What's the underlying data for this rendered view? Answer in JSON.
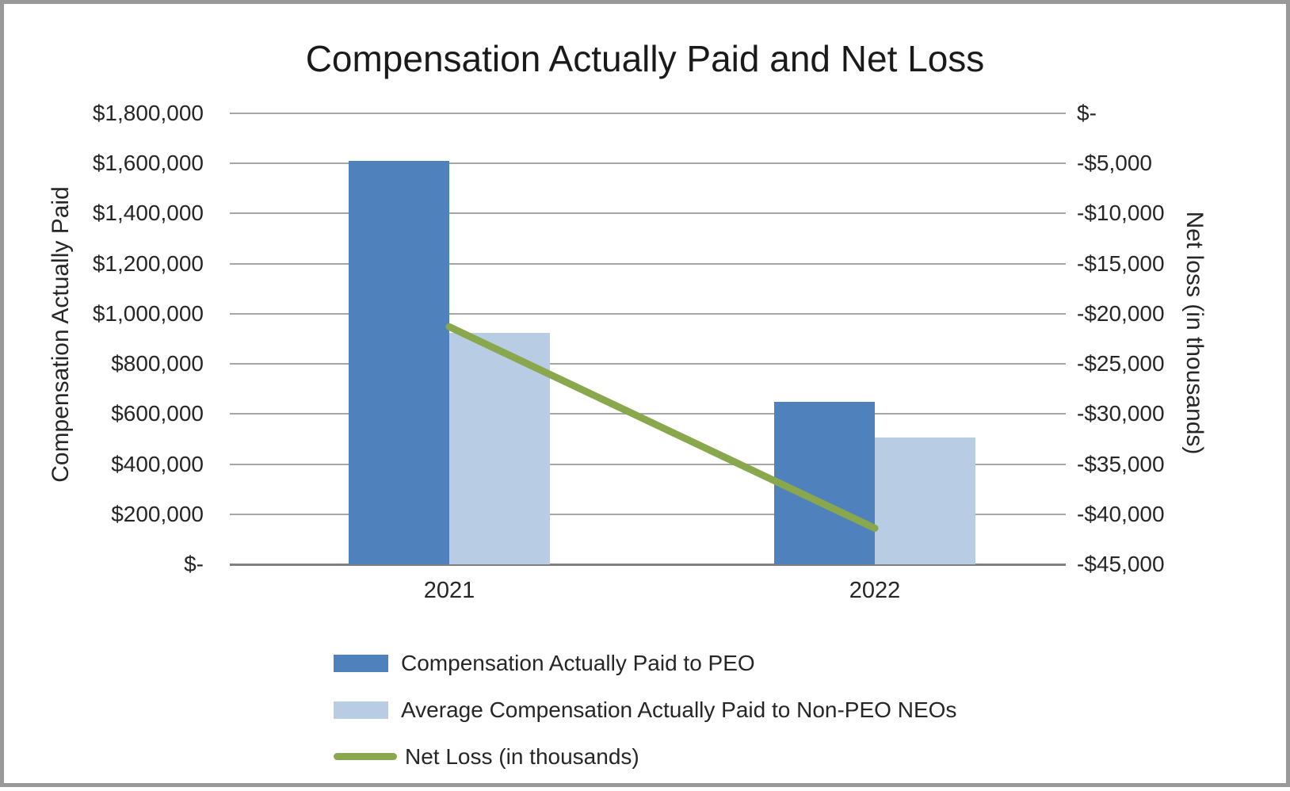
{
  "frame": {
    "border_color": "#999999",
    "background_color": "#ffffff",
    "gridline_color": "#a6a6a6",
    "axis_line_color": "#808080",
    "text_color": "#262626"
  },
  "chart_data": {
    "type": "combo",
    "title": "Compensation Actually Paid and Net Loss",
    "categories": [
      "2021",
      "2022"
    ],
    "series": [
      {
        "key": "cap-peo",
        "name": "Compensation Actually Paid to PEO",
        "type": "bar",
        "axis": "left",
        "color": "#4f81bd",
        "values": [
          1610000,
          650000
        ]
      },
      {
        "key": "avg-cap-non-peo-neos",
        "name": "Average Compensation Actually Paid to Non-PEO NEOs",
        "type": "bar",
        "axis": "left",
        "color": "#b8cce4",
        "values": [
          925000,
          505000
        ]
      },
      {
        "key": "net-loss",
        "name": "Net Loss (in thousands)",
        "type": "line",
        "axis": "right",
        "color": "#89a84e",
        "values": [
          -21300,
          -41400
        ]
      }
    ],
    "left_axis": {
      "title": "Compensation Actually Paid",
      "min": 0,
      "max": 1800000,
      "ticks_top_to_bottom": [
        "$1,800,000",
        "$1,600,000",
        "$1,400,000",
        "$1,200,000",
        "$1,000,000",
        "$800,000",
        "$600,000",
        "$400,000",
        "$200,000",
        "$-"
      ]
    },
    "right_axis": {
      "title": "Net loss (in thousands)",
      "min": -45000,
      "max": 0,
      "ticks_top_to_bottom": [
        "$-",
        "-$5,000",
        "-$10,000",
        "-$15,000",
        "-$20,000",
        "-$25,000",
        "-$30,000",
        "-$35,000",
        "-$40,000",
        "-$45,000"
      ]
    },
    "grid": true,
    "legend_position": "bottom-left"
  }
}
